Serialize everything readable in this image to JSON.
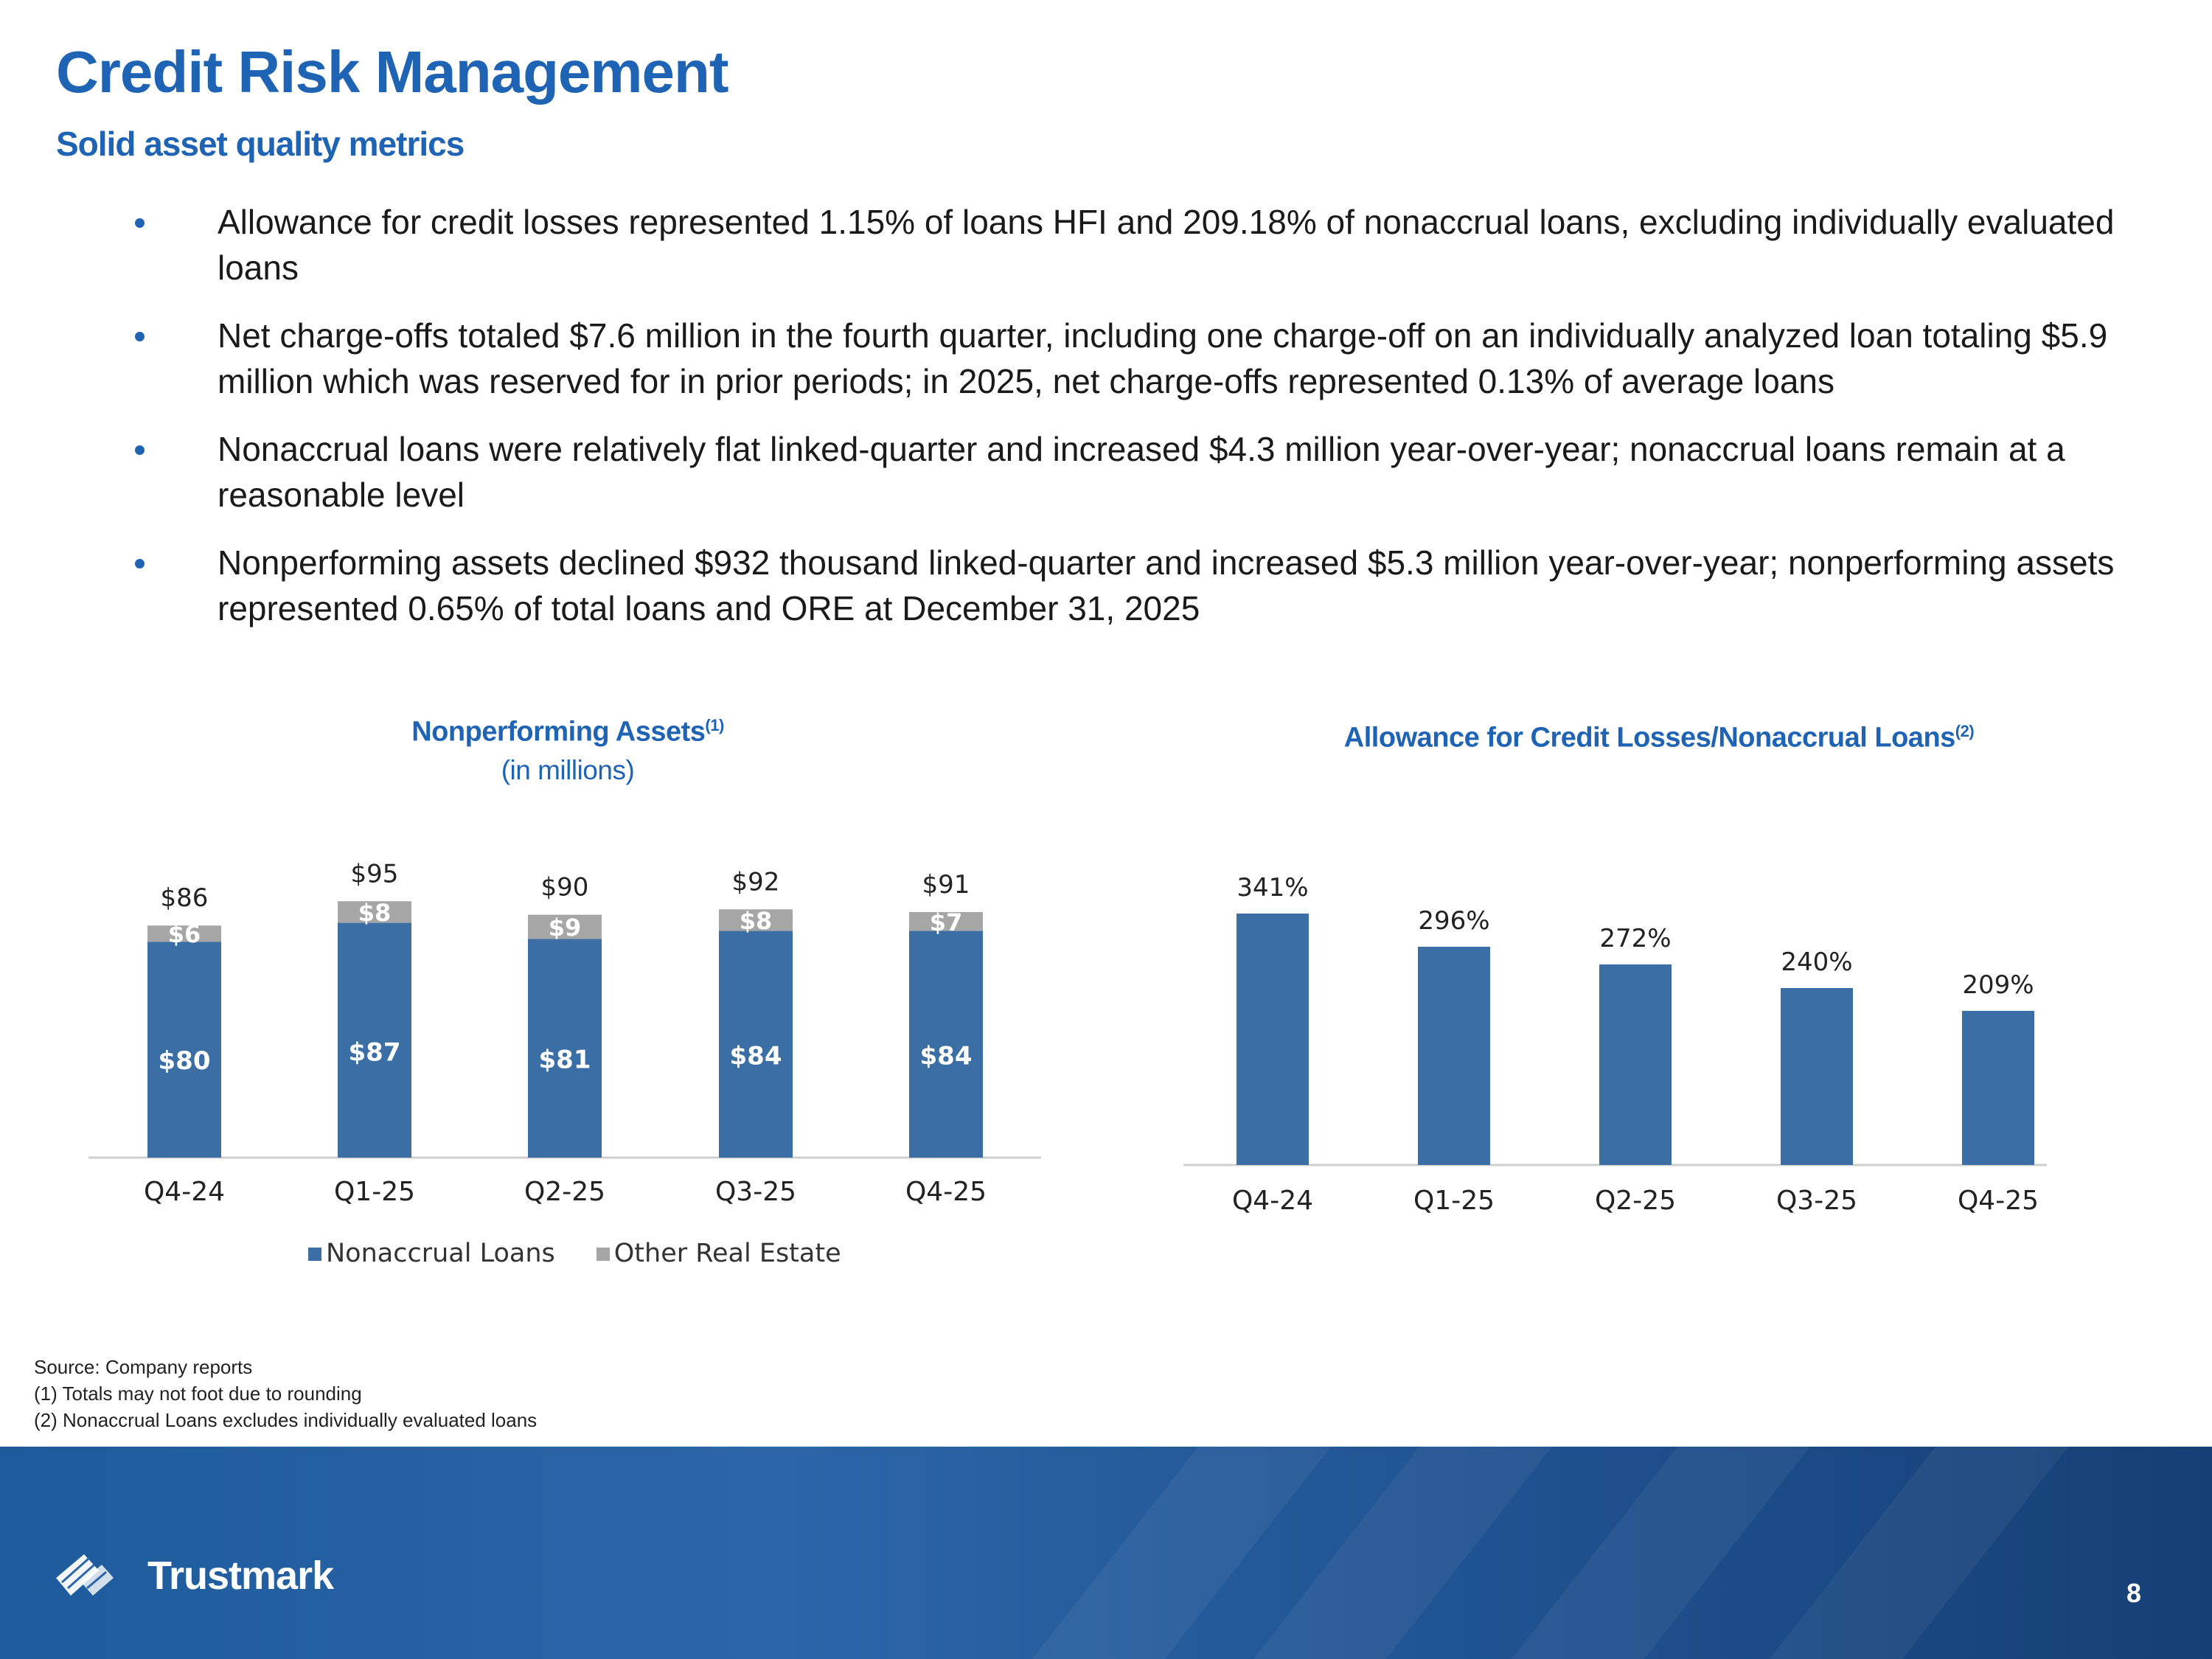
{
  "title": "Credit Risk Management",
  "subtitle": "Solid asset quality metrics",
  "bullets": [
    "Allowance for credit losses represented 1.15% of loans HFI and 209.18% of nonaccrual loans, excluding individually evaluated loans",
    "Net charge-offs totaled $7.6 million in the fourth quarter, including one charge-off on an individually analyzed loan totaling $5.9 million which was reserved for in prior periods; in 2025, net charge-offs represented 0.13% of average loans",
    "Nonaccrual loans were relatively flat linked-quarter and increased $4.3 million year-over-year; nonaccrual loans remain at a reasonable level",
    "Nonperforming assets declined $932 thousand linked-quarter and increased $5.3 million year-over-year; nonperforming assets represented 0.65% of total loans and ORE at December 31, 2025"
  ],
  "chart_data": [
    {
      "type": "bar",
      "stacked": true,
      "title": "Nonperforming Assets",
      "title_note": "(1)",
      "subtitle": "(in millions)",
      "categories": [
        "Q4-24",
        "Q1-25",
        "Q2-25",
        "Q3-25",
        "Q4-25"
      ],
      "series": [
        {
          "name": "Nonaccrual Loans",
          "values": [
            80,
            87,
            81,
            84,
            84
          ],
          "labels": [
            "$80",
            "$87",
            "$81",
            "$84",
            "$84"
          ],
          "color": "#3a6ea5"
        },
        {
          "name": "Other Real Estate",
          "values": [
            6,
            8,
            9,
            8,
            7
          ],
          "labels": [
            "$6",
            "$8",
            "$9",
            "$8",
            "$7"
          ],
          "color": "#a6a6a6"
        }
      ],
      "totals": [
        86,
        95,
        90,
        92,
        91
      ],
      "total_labels": [
        "$86",
        "$95",
        "$90",
        "$92",
        "$91"
      ],
      "ylim": [
        0,
        100
      ],
      "legend_position": "bottom"
    },
    {
      "type": "bar",
      "title": "Allowance for Credit Losses/Nonaccrual Loans",
      "title_note": "(2)",
      "categories": [
        "Q4-24",
        "Q1-25",
        "Q2-25",
        "Q3-25",
        "Q4-25"
      ],
      "values": [
        341,
        296,
        272,
        240,
        209
      ],
      "labels": [
        "341%",
        "296%",
        "272%",
        "240%",
        "209%"
      ],
      "color": "#3a6ea5",
      "ylim": [
        0,
        360
      ]
    }
  ],
  "footnotes": [
    "Source: Company reports",
    "(1) Totals may not foot due to rounding",
    "(2) Nonaccrual Loans excludes individually evaluated loans"
  ],
  "footer": {
    "logo_text": "Trustmark",
    "page_number": "8",
    "color": "#1f5a9a"
  }
}
